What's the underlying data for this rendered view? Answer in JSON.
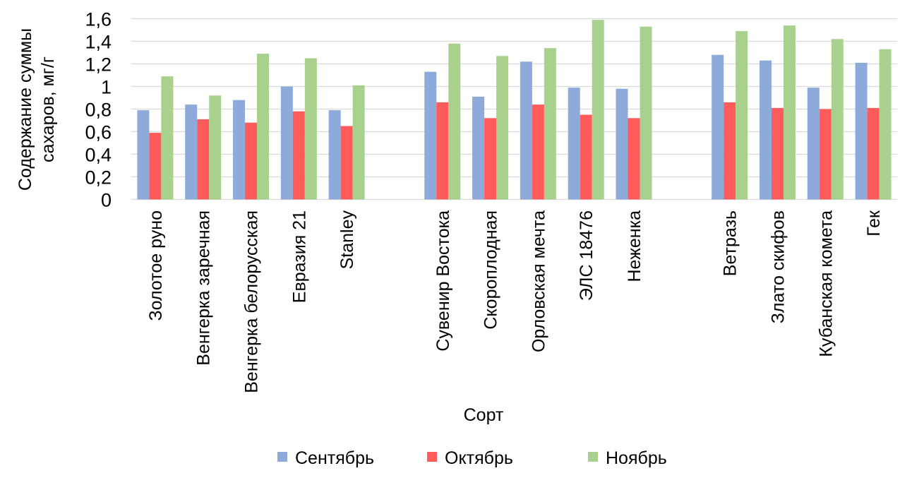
{
  "chart_data": {
    "type": "bar",
    "title": "",
    "xlabel": "Сорт",
    "ylabel_lines": [
      "Содержание суммы",
      "сахаров,  мг/г"
    ],
    "ylim": [
      0,
      1.6
    ],
    "yticks": [
      "0",
      "0,2",
      "0,4",
      "0,6",
      "0,8",
      "1",
      "1,2",
      "1,4",
      "1,6"
    ],
    "grid": true,
    "legend_position": "bottom",
    "categories": [
      "Золотое руно",
      "Венгерка заречная",
      "Венгерка белорусская",
      "Евразия 21",
      "Stanley",
      "",
      "Сувенир Востока",
      "Скороплодная",
      "Орловская мечта",
      "ЭЛС 18476",
      "Неженка",
      "",
      "Ветразь",
      "Злато скифов",
      "Кубанская комета",
      "Гек"
    ],
    "series": [
      {
        "name": "Сентябрь",
        "color": "#8EAADB",
        "values": [
          0.79,
          0.84,
          0.88,
          1.0,
          0.79,
          null,
          1.13,
          0.91,
          1.22,
          0.99,
          0.98,
          null,
          1.28,
          1.23,
          0.99,
          1.21
        ]
      },
      {
        "name": "Октябрь",
        "color": "#FF5B5B",
        "values": [
          0.59,
          0.71,
          0.68,
          0.78,
          0.65,
          null,
          0.86,
          0.72,
          0.84,
          0.75,
          0.72,
          null,
          0.86,
          0.81,
          0.8,
          0.81
        ]
      },
      {
        "name": "Ноябрь",
        "color": "#A9D18E",
        "values": [
          1.09,
          0.92,
          1.29,
          1.25,
          1.01,
          null,
          1.38,
          1.27,
          1.34,
          1.59,
          1.53,
          null,
          1.49,
          1.54,
          1.42,
          1.33
        ]
      }
    ]
  }
}
